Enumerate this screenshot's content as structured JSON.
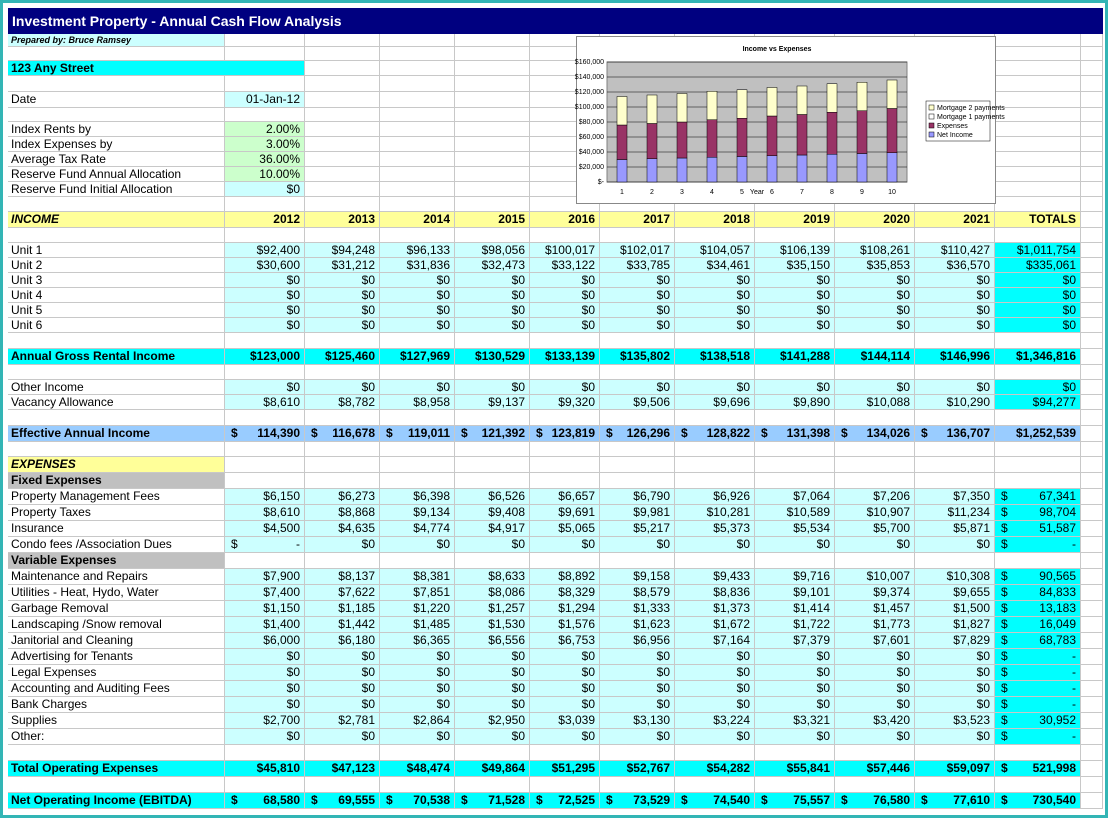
{
  "header": {
    "title": "Investment Property - Annual Cash Flow Analysis",
    "prepared_by": "Prepared by: Bruce Ramsey"
  },
  "property": {
    "address": "123 Any Street",
    "date_label": "Date",
    "date": "01-Jan-12"
  },
  "assumptions": [
    {
      "label": "Index Rents by",
      "value": "2.00%"
    },
    {
      "label": "Index Expenses by",
      "value": "3.00%"
    },
    {
      "label": "Average Tax Rate",
      "value": "36.00%"
    },
    {
      "label": "Reserve Fund Annual Allocation",
      "value": "10.00%"
    },
    {
      "label": "Reserve Fund Initial Allocation",
      "value": "$0"
    }
  ],
  "chart_data": {
    "type": "bar",
    "stacked": true,
    "title": "Income vs Expenses",
    "x_label": "Year",
    "categories": [
      "1",
      "2",
      "3",
      "4",
      "5",
      "6",
      "7",
      "8",
      "9",
      "10"
    ],
    "series": [
      {
        "name": "Net Income",
        "color": "#9999ff",
        "values": [
          30000,
          31000,
          32000,
          33000,
          34000,
          35000,
          36000,
          37000,
          38000,
          39000
        ]
      },
      {
        "name": "Expenses",
        "color": "#993366",
        "values": [
          46000,
          47000,
          48000,
          50000,
          51000,
          53000,
          54000,
          56000,
          57000,
          59000
        ]
      },
      {
        "name": "Mortgage 1 payments",
        "color": "#ffffff",
        "values": [
          0,
          0,
          0,
          0,
          0,
          0,
          0,
          0,
          0,
          0
        ]
      },
      {
        "name": "Mortgage 2 payments",
        "color": "#ffffcc",
        "values": [
          38000,
          38000,
          38000,
          38000,
          38000,
          38000,
          38000,
          38000,
          38000,
          38000
        ]
      }
    ],
    "ylim": [
      0,
      160000
    ],
    "yticks": [
      {
        "value": 0,
        "label": "$-"
      },
      {
        "value": 20000,
        "label": "$20,000"
      },
      {
        "value": 40000,
        "label": "$40,000"
      },
      {
        "value": 60000,
        "label": "$60,000"
      },
      {
        "value": 80000,
        "label": "$80,000"
      },
      {
        "value": 100000,
        "label": "$100,000"
      },
      {
        "value": 120000,
        "label": "$120,000"
      },
      {
        "value": 140000,
        "label": "$140,000"
      },
      {
        "value": 160000,
        "label": "$160,000"
      }
    ],
    "grid": true,
    "legend": "right"
  },
  "table": {
    "income_label": "INCOME",
    "years": [
      "2012",
      "2013",
      "2014",
      "2015",
      "2016",
      "2017",
      "2018",
      "2019",
      "2020",
      "2021"
    ],
    "totals_label": "TOTALS",
    "rental_units": [
      {
        "label": "Unit 1",
        "cells": [
          "$92,400",
          "$94,248",
          "$96,133",
          "$98,056",
          "$100,017",
          "$102,017",
          "$104,057",
          "$106,139",
          "$108,261",
          "$110,427",
          "$1,011,754"
        ]
      },
      {
        "label": "Unit 2",
        "cells": [
          "$30,600",
          "$31,212",
          "$31,836",
          "$32,473",
          "$33,122",
          "$33,785",
          "$34,461",
          "$35,150",
          "$35,853",
          "$36,570",
          "$335,061"
        ]
      },
      {
        "label": "Unit 3",
        "cells": [
          "$0",
          "$0",
          "$0",
          "$0",
          "$0",
          "$0",
          "$0",
          "$0",
          "$0",
          "$0",
          "$0"
        ]
      },
      {
        "label": "Unit 4",
        "cells": [
          "$0",
          "$0",
          "$0",
          "$0",
          "$0",
          "$0",
          "$0",
          "$0",
          "$0",
          "$0",
          "$0"
        ]
      },
      {
        "label": "Unit 5",
        "cells": [
          "$0",
          "$0",
          "$0",
          "$0",
          "$0",
          "$0",
          "$0",
          "$0",
          "$0",
          "$0",
          "$0"
        ]
      },
      {
        "label": "Unit 6",
        "cells": [
          "$0",
          "$0",
          "$0",
          "$0",
          "$0",
          "$0",
          "$0",
          "$0",
          "$0",
          "$0",
          "$0"
        ]
      }
    ],
    "gross_rental": {
      "label": "Annual Gross Rental Income",
      "cells": [
        "$123,000",
        "$125,460",
        "$127,969",
        "$130,529",
        "$133,139",
        "$135,802",
        "$138,518",
        "$141,288",
        "$144,114",
        "$146,996",
        "$1,346,816"
      ]
    },
    "other_income": [
      {
        "label": "Other Income",
        "cells": [
          "$0",
          "$0",
          "$0",
          "$0",
          "$0",
          "$0",
          "$0",
          "$0",
          "$0",
          "$0",
          "$0"
        ]
      },
      {
        "label": "Vacancy Allowance",
        "cells": [
          "$8,610",
          "$8,782",
          "$8,958",
          "$9,137",
          "$9,320",
          "$9,506",
          "$9,696",
          "$9,890",
          "$10,088",
          "$10,290",
          "$94,277"
        ]
      }
    ],
    "effective_income": {
      "label": "Effective Annual Income",
      "cells": [
        "$ 114,390",
        "$ 116,678",
        "$ 119,011",
        "$ 121,392",
        "$ 123,819",
        "$ 126,296",
        "$ 128,822",
        "$ 131,398",
        "$ 134,026",
        "$ 136,707",
        "$1,252,539"
      ]
    },
    "expenses_label": "EXPENSES",
    "fixed_expenses": {
      "label": "Fixed Expenses",
      "rows": [
        {
          "label": "Property Management Fees",
          "cells": [
            "$6,150",
            "$6,273",
            "$6,398",
            "$6,526",
            "$6,657",
            "$6,790",
            "$6,926",
            "$7,064",
            "$7,206",
            "$7,350",
            "$ 67,341"
          ]
        },
        {
          "label": "Property Taxes",
          "cells": [
            "$8,610",
            "$8,868",
            "$9,134",
            "$9,408",
            "$9,691",
            "$9,981",
            "$10,281",
            "$10,589",
            "$10,907",
            "$11,234",
            "$ 98,704"
          ]
        },
        {
          "label": "Insurance",
          "cells": [
            "$4,500",
            "$4,635",
            "$4,774",
            "$4,917",
            "$5,065",
            "$5,217",
            "$5,373",
            "$5,534",
            "$5,700",
            "$5,871",
            "$ 51,587"
          ]
        },
        {
          "label": "Condo fees /Association Dues",
          "cells": [
            "$ -",
            "$0",
            "$0",
            "$0",
            "$0",
            "$0",
            "$0",
            "$0",
            "$0",
            "$0",
            "$ -"
          ]
        }
      ]
    },
    "variable_expenses": {
      "label": "Variable Expenses",
      "rows": [
        {
          "label": "Maintenance and Repairs",
          "cells": [
            "$7,900",
            "$8,137",
            "$8,381",
            "$8,633",
            "$8,892",
            "$9,158",
            "$9,433",
            "$9,716",
            "$10,007",
            "$10,308",
            "$ 90,565"
          ]
        },
        {
          "label": "Utilities - Heat, Hydo, Water",
          "cells": [
            "$7,400",
            "$7,622",
            "$7,851",
            "$8,086",
            "$8,329",
            "$8,579",
            "$8,836",
            "$9,101",
            "$9,374",
            "$9,655",
            "$ 84,833"
          ]
        },
        {
          "label": "Garbage Removal",
          "cells": [
            "$1,150",
            "$1,185",
            "$1,220",
            "$1,257",
            "$1,294",
            "$1,333",
            "$1,373",
            "$1,414",
            "$1,457",
            "$1,500",
            "$ 13,183"
          ]
        },
        {
          "label": "Landscaping /Snow removal",
          "cells": [
            "$1,400",
            "$1,442",
            "$1,485",
            "$1,530",
            "$1,576",
            "$1,623",
            "$1,672",
            "$1,722",
            "$1,773",
            "$1,827",
            "$ 16,049"
          ]
        },
        {
          "label": "Janitorial and Cleaning",
          "cells": [
            "$6,000",
            "$6,180",
            "$6,365",
            "$6,556",
            "$6,753",
            "$6,956",
            "$7,164",
            "$7,379",
            "$7,601",
            "$7,829",
            "$ 68,783"
          ]
        },
        {
          "label": "Advertising for Tenants",
          "cells": [
            "$0",
            "$0",
            "$0",
            "$0",
            "$0",
            "$0",
            "$0",
            "$0",
            "$0",
            "$0",
            "$ -"
          ]
        },
        {
          "label": "Legal Expenses",
          "cells": [
            "$0",
            "$0",
            "$0",
            "$0",
            "$0",
            "$0",
            "$0",
            "$0",
            "$0",
            "$0",
            "$ -"
          ]
        },
        {
          "label": "Accounting and Auditing Fees",
          "cells": [
            "$0",
            "$0",
            "$0",
            "$0",
            "$0",
            "$0",
            "$0",
            "$0",
            "$0",
            "$0",
            "$ -"
          ]
        },
        {
          "label": "Bank Charges",
          "cells": [
            "$0",
            "$0",
            "$0",
            "$0",
            "$0",
            "$0",
            "$0",
            "$0",
            "$0",
            "$0",
            "$ -"
          ]
        },
        {
          "label": "Supplies",
          "cells": [
            "$2,700",
            "$2,781",
            "$2,864",
            "$2,950",
            "$3,039",
            "$3,130",
            "$3,224",
            "$3,321",
            "$3,420",
            "$3,523",
            "$ 30,952"
          ]
        },
        {
          "label": "Other:",
          "cells": [
            "$0",
            "$0",
            "$0",
            "$0",
            "$0",
            "$0",
            "$0",
            "$0",
            "$0",
            "$0",
            "$ -"
          ]
        }
      ]
    },
    "total_expenses": {
      "label": "Total Operating Expenses",
      "cells": [
        "$45,810",
        "$47,123",
        "$48,474",
        "$49,864",
        "$51,295",
        "$52,767",
        "$54,282",
        "$55,841",
        "$57,446",
        "$59,097",
        "$ 521,998"
      ]
    },
    "net_operating_income": {
      "label": "Net Operating Income (EBITDA)",
      "cells": [
        "$ 68,580",
        "$ 69,555",
        "$ 70,538",
        "$ 71,528",
        "$ 72,525",
        "$ 73,529",
        "$ 74,540",
        "$ 75,557",
        "$ 76,580",
        "$ 77,610",
        "$ 730,540"
      ]
    }
  }
}
